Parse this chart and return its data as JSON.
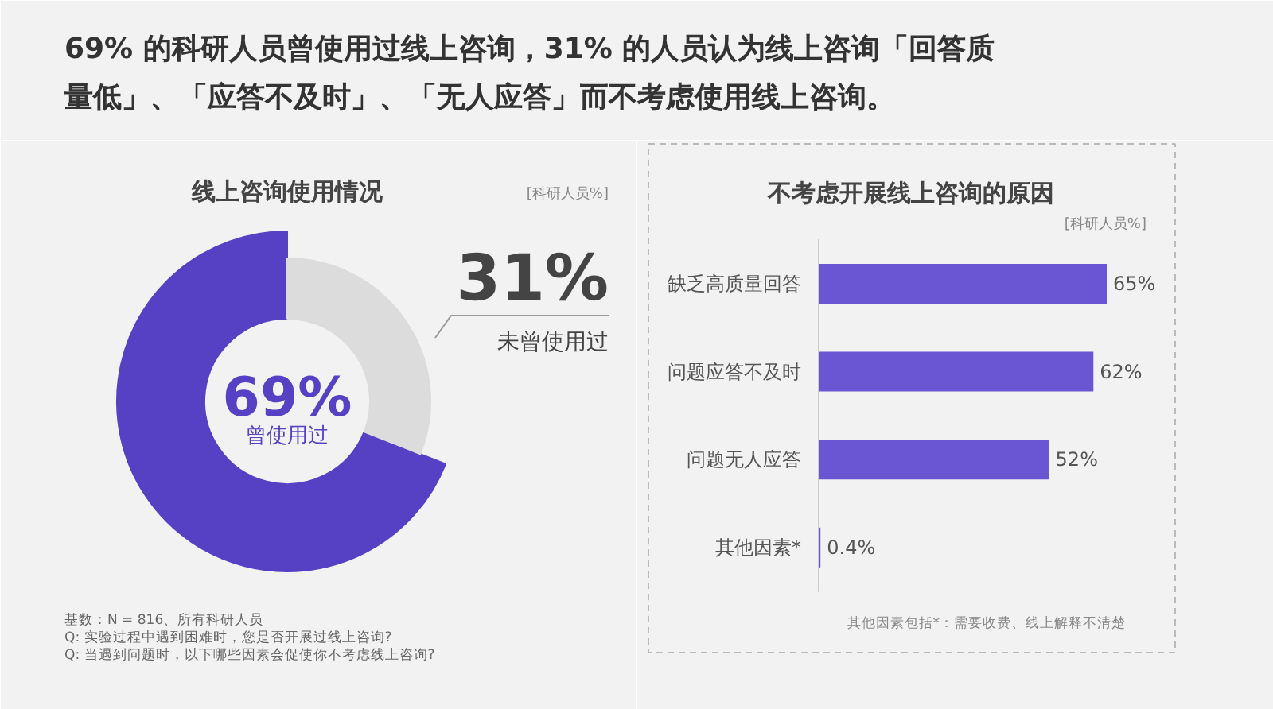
{
  "chart_data": [
    {
      "type": "donut",
      "title": "69% 的科研人员曾使用过线上咨询，31% 的人员认为线上咨询「回答质量低」、「应答不及时」、「无人应答」而不考虑使用线上咨询。",
      "subtitle": "线上咨询使用情况",
      "categories": [
        "曾使用过",
        "未曾使用过"
      ],
      "values": [
        69,
        31
      ],
      "colors": [
        "#5640c4",
        "#dcdcdc"
      ],
      "value_labels": [
        "69%",
        "31%"
      ],
      "annotations": [
        "[科研人员%]",
        "基数：N = 816、所有科研人员",
        "Q:  实验过程中遇到困难时，您是否开展过线上咨询?",
        "Q:  当遇到问题时，以下哪些因素会促使你不考虑线上咨询?"
      ]
    },
    {
      "type": "bar",
      "orientation": "horizontal",
      "title": "不考虑开展线上咨询的原因",
      "categories": [
        "缺乏高质量回答",
        "问题应答不及时",
        "问题无人应答",
        "其他因素*"
      ],
      "values": [
        65,
        62,
        52,
        0.4
      ],
      "color": "#6a55d2",
      "value_labels": [
        "65%",
        "62%",
        "52%",
        "0.4%"
      ],
      "tick_labels": "y",
      "annotations": [
        "[科研人员%]",
        "其他因素包括*：需要收费、线上解释不清楚"
      ]
    }
  ]
}
